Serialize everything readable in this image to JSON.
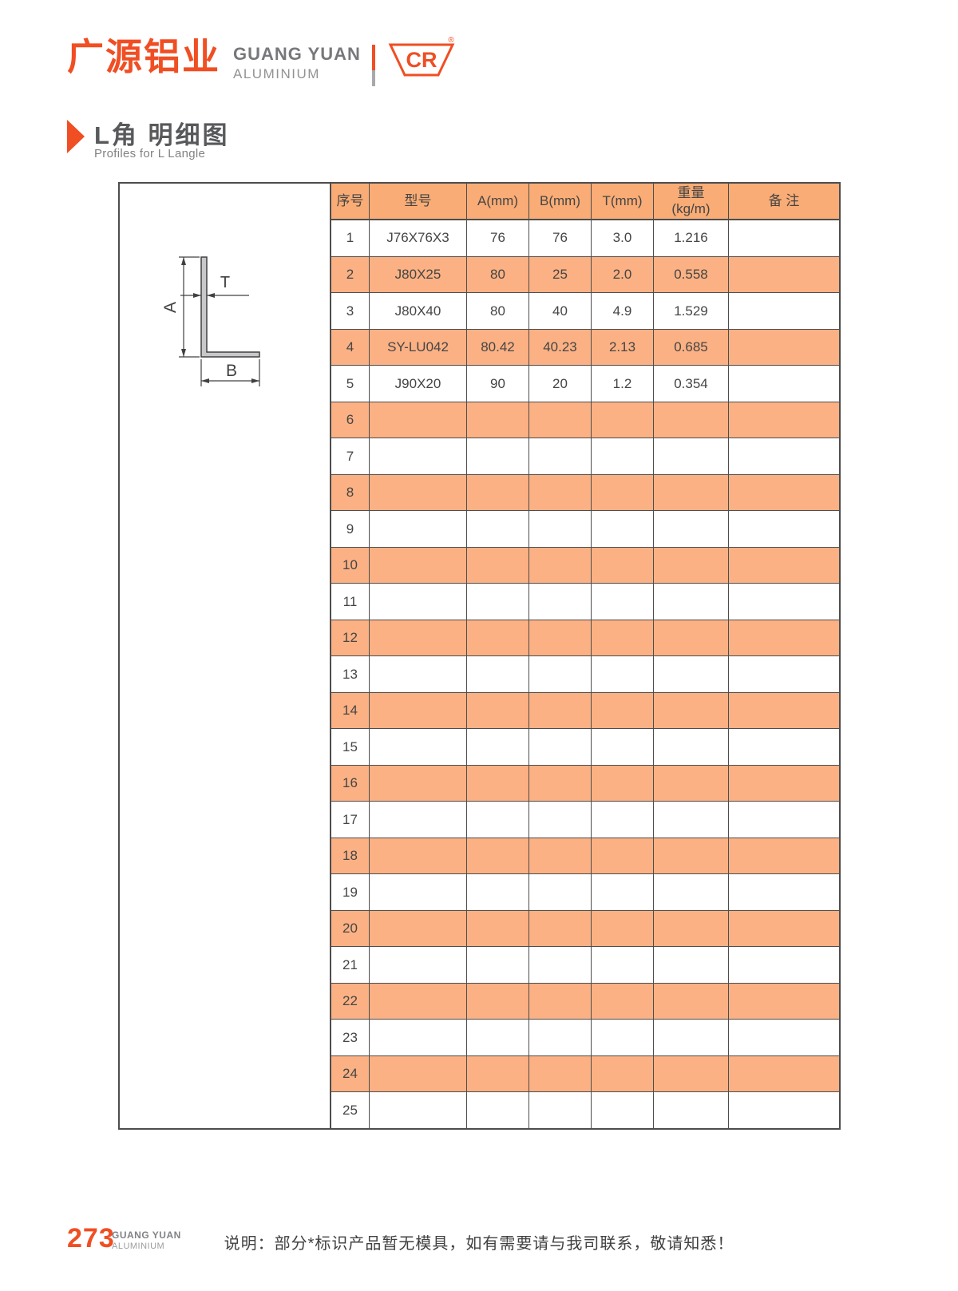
{
  "header": {
    "logo_cn": "广源铝业",
    "logo_en_line1": "GUANG YUAN",
    "logo_en_line2": "ALUMINIUM",
    "emblem_text": "CR",
    "registered_mark": "®"
  },
  "section": {
    "title": "L角 明细图",
    "subtitle": "Profiles for L Langle"
  },
  "diagram": {
    "label_a": "A",
    "label_b": "B",
    "label_t": "T"
  },
  "table": {
    "headers": [
      {
        "line1": "序号"
      },
      {
        "line1": "型号"
      },
      {
        "line1": "A(mm)"
      },
      {
        "line1": "B(mm)"
      },
      {
        "line1": "T(mm)"
      },
      {
        "line1": "重量",
        "line2": "(kg/m)"
      },
      {
        "line1": "备 注"
      }
    ],
    "rows": [
      {
        "no": "1",
        "model": "J76X76X3",
        "a": "76",
        "b": "76",
        "t": "3.0",
        "weight": "1.216",
        "remark": ""
      },
      {
        "no": "2",
        "model": "J80X25",
        "a": "80",
        "b": "25",
        "t": "2.0",
        "weight": "0.558",
        "remark": ""
      },
      {
        "no": "3",
        "model": "J80X40",
        "a": "80",
        "b": "40",
        "t": "4.9",
        "weight": "1.529",
        "remark": ""
      },
      {
        "no": "4",
        "model": "SY-LU042",
        "a": "80.42",
        "b": "40.23",
        "t": "2.13",
        "weight": "0.685",
        "remark": ""
      },
      {
        "no": "5",
        "model": "J90X20",
        "a": "90",
        "b": "20",
        "t": "1.2",
        "weight": "0.354",
        "remark": ""
      },
      {
        "no": "6",
        "model": "",
        "a": "",
        "b": "",
        "t": "",
        "weight": "",
        "remark": ""
      },
      {
        "no": "7",
        "model": "",
        "a": "",
        "b": "",
        "t": "",
        "weight": "",
        "remark": ""
      },
      {
        "no": "8",
        "model": "",
        "a": "",
        "b": "",
        "t": "",
        "weight": "",
        "remark": ""
      },
      {
        "no": "9",
        "model": "",
        "a": "",
        "b": "",
        "t": "",
        "weight": "",
        "remark": ""
      },
      {
        "no": "10",
        "model": "",
        "a": "",
        "b": "",
        "t": "",
        "weight": "",
        "remark": ""
      },
      {
        "no": "11",
        "model": "",
        "a": "",
        "b": "",
        "t": "",
        "weight": "",
        "remark": ""
      },
      {
        "no": "12",
        "model": "",
        "a": "",
        "b": "",
        "t": "",
        "weight": "",
        "remark": ""
      },
      {
        "no": "13",
        "model": "",
        "a": "",
        "b": "",
        "t": "",
        "weight": "",
        "remark": ""
      },
      {
        "no": "14",
        "model": "",
        "a": "",
        "b": "",
        "t": "",
        "weight": "",
        "remark": ""
      },
      {
        "no": "15",
        "model": "",
        "a": "",
        "b": "",
        "t": "",
        "weight": "",
        "remark": ""
      },
      {
        "no": "16",
        "model": "",
        "a": "",
        "b": "",
        "t": "",
        "weight": "",
        "remark": ""
      },
      {
        "no": "17",
        "model": "",
        "a": "",
        "b": "",
        "t": "",
        "weight": "",
        "remark": ""
      },
      {
        "no": "18",
        "model": "",
        "a": "",
        "b": "",
        "t": "",
        "weight": "",
        "remark": ""
      },
      {
        "no": "19",
        "model": "",
        "a": "",
        "b": "",
        "t": "",
        "weight": "",
        "remark": ""
      },
      {
        "no": "20",
        "model": "",
        "a": "",
        "b": "",
        "t": "",
        "weight": "",
        "remark": ""
      },
      {
        "no": "21",
        "model": "",
        "a": "",
        "b": "",
        "t": "",
        "weight": "",
        "remark": ""
      },
      {
        "no": "22",
        "model": "",
        "a": "",
        "b": "",
        "t": "",
        "weight": "",
        "remark": ""
      },
      {
        "no": "23",
        "model": "",
        "a": "",
        "b": "",
        "t": "",
        "weight": "",
        "remark": ""
      },
      {
        "no": "24",
        "model": "",
        "a": "",
        "b": "",
        "t": "",
        "weight": "",
        "remark": ""
      },
      {
        "no": "25",
        "model": "",
        "a": "",
        "b": "",
        "t": "",
        "weight": "",
        "remark": ""
      }
    ]
  },
  "footer": {
    "page_number": "273",
    "brand_line1": "GUANG YUAN",
    "brand_line2": "ALUMINIUM",
    "note": "说明：部分*标识产品暂无模具，如有需要请与我司联系，敬请知悉！"
  },
  "colors": {
    "brand_orange": "#F04E23",
    "row_orange": "#FBB183",
    "header_orange": "#F9AC75",
    "table_border": "#4d4d4d",
    "text_dark": "#454545",
    "text_gray": "#808285"
  }
}
